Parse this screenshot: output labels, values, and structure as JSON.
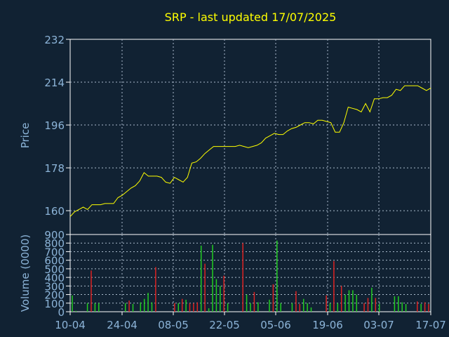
{
  "chart_data": [
    {
      "type": "line",
      "title": "SRP - last updated 17/07/2025",
      "ylabel": "Price",
      "ylim": [
        150,
        232
      ],
      "yticks": [
        160,
        178,
        196,
        214,
        232
      ],
      "line_color": "#ffff00",
      "grid": true,
      "series": [
        {
          "values": [
            157.5,
            159.5,
            160.5,
            161.5,
            160.5,
            162.5,
            162.5,
            162.5,
            163,
            163,
            163,
            165.5,
            166.5,
            168,
            169.5,
            170.5,
            172.5,
            176,
            174.5,
            174.5,
            174.5,
            174,
            172,
            171.5,
            174,
            173,
            172,
            174,
            180,
            180.5,
            182,
            184,
            185.5,
            187,
            187,
            187,
            187,
            187,
            187,
            187.5,
            187,
            186.5,
            187,
            187.5,
            188.5,
            190.5,
            191.5,
            192.5,
            192,
            192,
            193.5,
            194.5,
            195,
            196,
            197,
            197,
            196.5,
            198,
            198,
            197.5,
            197,
            193,
            193,
            197,
            203.5,
            203,
            202.5,
            201.5,
            205,
            201.5,
            207,
            207,
            207.5,
            207.5,
            208.5,
            211,
            210.5,
            212.5,
            212.5,
            212.5,
            212.5,
            211.5,
            210.5,
            211.5
          ]
        }
      ]
    },
    {
      "type": "bar",
      "ylabel": "Volume (0000)",
      "ylim": [
        0,
        900
      ],
      "yticks": [
        0,
        100,
        200,
        300,
        400,
        500,
        600,
        700,
        800,
        900
      ],
      "up_color": "#22cc22",
      "down_color": "#dd2222",
      "grid": true,
      "xtick_labels": [
        "10-04",
        "24-04",
        "08-05",
        "22-05",
        "05-06",
        "19-06",
        "03-07",
        "17-07"
      ],
      "values": [
        190,
        10,
        0,
        0,
        100,
        480,
        100,
        100,
        0,
        0,
        0,
        0,
        0,
        0,
        100,
        130,
        90,
        0,
        110,
        150,
        220,
        110,
        520,
        0,
        0,
        0,
        0,
        100,
        100,
        150,
        140,
        100,
        100,
        110,
        770,
        560,
        40,
        780,
        380,
        300,
        420,
        100,
        0,
        0,
        0,
        800,
        200,
        100,
        230,
        110,
        0,
        0,
        140,
        320,
        830,
        100,
        0,
        0,
        100,
        240,
        90,
        150,
        100,
        50,
        0,
        0,
        0,
        190,
        100,
        590,
        100,
        300,
        200,
        250,
        250,
        200,
        0,
        100,
        160,
        280,
        160,
        90,
        0,
        0,
        0,
        180,
        180,
        110,
        90,
        0,
        0,
        120,
        90,
        110,
        90
      ],
      "directions": [
        "up",
        "up",
        "up",
        "up",
        "up",
        "down",
        "up",
        "up",
        "up",
        "up",
        "up",
        "up",
        "up",
        "up",
        "up",
        "down",
        "up",
        "up",
        "up",
        "up",
        "up",
        "up",
        "down",
        "up",
        "up",
        "up",
        "up",
        "down",
        "up",
        "down",
        "up",
        "down",
        "down",
        "down",
        "up",
        "down",
        "up",
        "up",
        "up",
        "up",
        "down",
        "up",
        "up",
        "up",
        "up",
        "down",
        "up",
        "up",
        "down",
        "up",
        "up",
        "up",
        "up",
        "down",
        "up",
        "up",
        "up",
        "up",
        "up",
        "down",
        "down",
        "up",
        "up",
        "up",
        "up",
        "up",
        "up",
        "down",
        "up",
        "down",
        "up",
        "down",
        "up",
        "up",
        "up",
        "up",
        "up",
        "down",
        "down",
        "up",
        "down",
        "up",
        "up",
        "up",
        "up",
        "up",
        "up",
        "up",
        "up",
        "up",
        "up",
        "down",
        "up",
        "down",
        "down"
      ]
    }
  ]
}
